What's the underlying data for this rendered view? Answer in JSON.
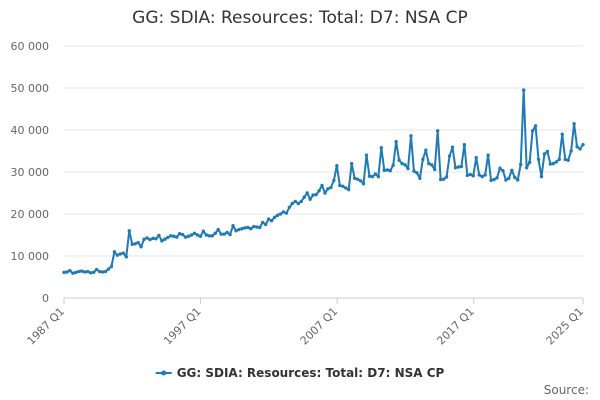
{
  "chart_data": {
    "type": "line",
    "title": "GG: SDIA: Resources: Total: D7: NSA CP",
    "xlabel": "",
    "ylabel": "",
    "ylim": [
      0,
      60000
    ],
    "ytick_values": [
      0,
      10000,
      20000,
      30000,
      40000,
      50000,
      60000
    ],
    "ytick_labels": [
      "0",
      "10 000",
      "20 000",
      "30 000",
      "40 000",
      "50 000",
      "60 000"
    ],
    "xlim": [
      "1987 Q1",
      "2025 Q1"
    ],
    "xtick_labels": [
      "1987 Q1",
      "1997 Q1",
      "2007 Q1",
      "2017 Q1",
      "2025 Q1"
    ],
    "legend_position": "bottom-center",
    "grid": "horizontal",
    "color": "#1f7ab5",
    "series": [
      {
        "name": "GG: SDIA: Resources: Total: D7: NSA CP",
        "values": [
          6100,
          6200,
          6500,
          5900,
          6100,
          6300,
          6400,
          6200,
          6300,
          6000,
          6100,
          6800,
          6300,
          6200,
          6300,
          6900,
          7500,
          11000,
          10200,
          10500,
          10700,
          9800,
          16000,
          12800,
          12900,
          13200,
          12200,
          14000,
          14300,
          13900,
          14200,
          14100,
          14900,
          13600,
          14000,
          14400,
          14800,
          14700,
          14500,
          15300,
          15100,
          14500,
          14700,
          15000,
          15400,
          15000,
          14700,
          15900,
          15000,
          14800,
          14800,
          15400,
          16300,
          15200,
          15200,
          15600,
          15100,
          17200,
          16000,
          16300,
          16500,
          16700,
          16800,
          16500,
          17000,
          16900,
          16800,
          18000,
          17500,
          18800,
          18400,
          19200,
          19700,
          20000,
          20500,
          20200,
          21600,
          22500,
          23000,
          22500,
          23000,
          24000,
          25000,
          23500,
          24500,
          24600,
          25500,
          26800,
          25000,
          26000,
          26300,
          28000,
          31500,
          26800,
          26600,
          26200,
          25800,
          32000,
          28500,
          28300,
          27900,
          27200,
          34000,
          29000,
          28900,
          29500,
          28900,
          35800,
          30400,
          30500,
          30300,
          31600,
          37200,
          32800,
          32000,
          31700,
          30800,
          38600,
          30200,
          29800,
          28500,
          33000,
          35200,
          32000,
          31700,
          30600,
          39800,
          28200,
          28300,
          28800,
          33800,
          35900,
          31000,
          31200,
          31300,
          36500,
          29200,
          29400,
          29100,
          33400,
          29300,
          28900,
          29300,
          34000,
          28000,
          28200,
          28600,
          30900,
          30300,
          28100,
          28500,
          30400,
          28700,
          28100,
          31800,
          49500,
          31000,
          32300,
          39800,
          41000,
          33000,
          28900,
          34300,
          34900,
          31900,
          32000,
          32400,
          33000,
          39000,
          33000,
          32800,
          35000,
          41500,
          36000,
          35500,
          36500
        ]
      }
    ]
  },
  "footer": {
    "source_label": "Source:"
  }
}
